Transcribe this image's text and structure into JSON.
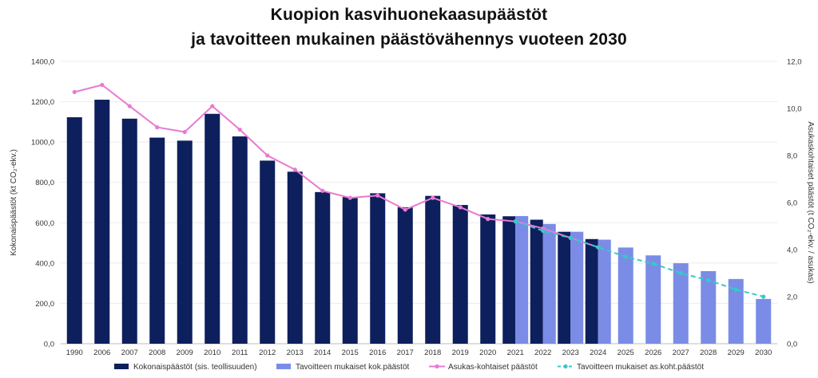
{
  "chart_data": {
    "type": "bar",
    "title": "Kuopion kasvihuonekaasupäästöt",
    "subtitle": "ja tavoitteen mukainen päästövähennys vuoteen 2030",
    "categories": [
      "1990",
      "2006",
      "2007",
      "2008",
      "2009",
      "2010",
      "2011",
      "2012",
      "2013",
      "2014",
      "2015",
      "2016",
      "2017",
      "2018",
      "2019",
      "2020",
      "2021",
      "2022",
      "2023",
      "2024",
      "2025",
      "2026",
      "2027",
      "2028",
      "2029",
      "2030"
    ],
    "ylabel": "Kokonaispäästöt (kt CO₂-ekv.)",
    "y2label": "Asukaskohtaiset päästöt (t CO₂-ekv. / asukas)",
    "ylim": [
      0,
      1400
    ],
    "y2lim": [
      0,
      12
    ],
    "yticks": [
      "0,0",
      "200,0",
      "400,0",
      "600,0",
      "800,0",
      "1000,0",
      "1200,0",
      "1400,0"
    ],
    "y2ticks": [
      "0,0",
      "2,0",
      "4,0",
      "6,0",
      "8,0",
      "10,0",
      "12,0"
    ],
    "grid": true,
    "legend_position": "bottom",
    "series": [
      {
        "name": "Kokonaispäästöt (sis. teollisuuden)",
        "kind": "bar",
        "axis": "left",
        "color": "#0d1f5c",
        "values": [
          1123,
          1210,
          1116,
          1022,
          1007,
          1140,
          1028,
          908,
          853,
          752,
          727,
          746,
          677,
          733,
          688,
          641,
          632,
          615,
          555,
          519,
          null,
          null,
          null,
          null,
          null,
          null
        ]
      },
      {
        "name": "Tavoitteen mukaiset kok.päästöt",
        "kind": "bar",
        "axis": "left",
        "color": "#7b8ce6",
        "values": [
          null,
          null,
          null,
          null,
          null,
          null,
          null,
          null,
          null,
          null,
          null,
          null,
          null,
          null,
          null,
          null,
          633,
          594,
          555,
          516,
          477,
          438,
          399,
          360,
          321,
          222
        ]
      },
      {
        "name": "Asukas-kohtaiset päästöt",
        "kind": "line",
        "axis": "right",
        "color": "#e97ad3",
        "values": [
          10.7,
          11.0,
          10.1,
          9.2,
          9.0,
          10.1,
          9.1,
          8.0,
          7.4,
          6.5,
          6.2,
          6.3,
          5.7,
          6.2,
          5.8,
          5.3,
          5.2,
          4.9,
          4.5,
          4.1,
          null,
          null,
          null,
          null,
          null,
          null
        ]
      },
      {
        "name": "Tavoitteen mukaiset as.koht.päästöt",
        "kind": "line-dashed",
        "axis": "right",
        "color": "#36c9c9",
        "values": [
          null,
          null,
          null,
          null,
          null,
          null,
          null,
          null,
          null,
          null,
          null,
          null,
          null,
          null,
          null,
          null,
          5.2,
          4.8,
          4.5,
          4.1,
          3.7,
          3.4,
          3.0,
          2.7,
          2.3,
          2.0
        ]
      }
    ]
  }
}
